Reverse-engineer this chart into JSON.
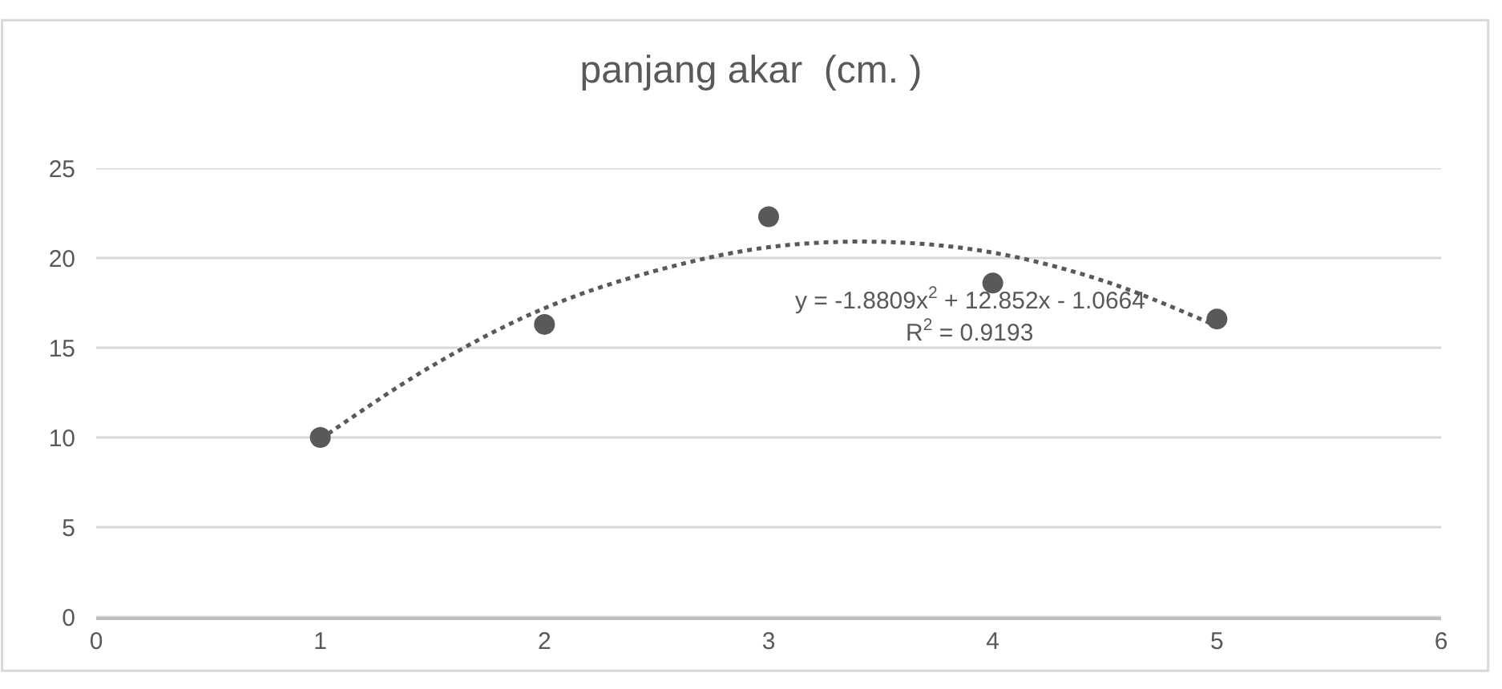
{
  "chart_data": {
    "type": "scatter",
    "title": "panjang akar  (cm. )",
    "x": [
      1,
      2,
      3,
      4,
      5
    ],
    "series": [
      {
        "color": "#595959",
        "marker": "circle",
        "values": [
          10,
          16.3,
          22.3,
          18.6,
          16.6
        ]
      },
      {
        "type": "line",
        "color": "#595959",
        "marker": "none",
        "line_style": "dotted",
        "x": [
          1,
          1.5,
          2,
          2.5,
          3,
          3.5,
          4,
          4.5,
          5
        ],
        "values": [
          9.9,
          14.0,
          17.2,
          19.3,
          20.6,
          20.9,
          20.3,
          18.7,
          16.2
        ]
      }
    ],
    "annotations": [
      "y = -1.8809x$^{2}$ + 12.852x - 1.0664",
      "R$^{2}$ = 0.9193"
    ],
    "xlim": [
      0,
      6
    ],
    "xticks": [
      0,
      1,
      2,
      3,
      4,
      5,
      6
    ],
    "ylim": [
      0,
      25
    ],
    "yticks": [
      0,
      5,
      10,
      15,
      20,
      25
    ],
    "grid": "y"
  }
}
